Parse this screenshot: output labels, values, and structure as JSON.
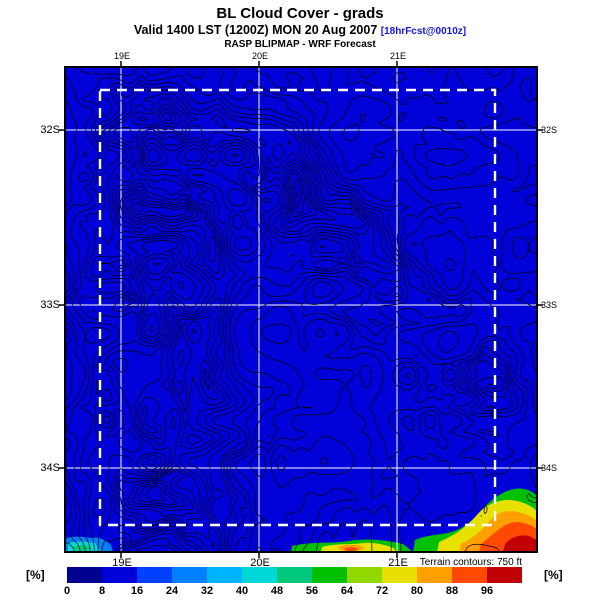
{
  "header": {
    "title": "BL Cloud Cover - grads",
    "valid_text": "Valid 1400 LST (1200Z) MON 20 Aug 2007 ",
    "fcst_tag": "[18hrFcst@0010z]",
    "model_text": "RASP BLIPMAP - WRF Forecast"
  },
  "map": {
    "x_ticks": [
      "19E",
      "20E",
      "21E"
    ],
    "y_ticks": [
      "32S",
      "33S",
      "34S"
    ],
    "colors": {
      "background": "#0000d8",
      "contours": "#000000",
      "grid": "#ffffff",
      "domain_box": "#ffffff",
      "frame": "#000000"
    }
  },
  "colorbar": {
    "unit": "[%]",
    "tick_labels": [
      "0",
      "8",
      "16",
      "24",
      "32",
      "40",
      "48",
      "56",
      "64",
      "72",
      "80",
      "88",
      "96"
    ],
    "colors": [
      "#000090",
      "#0000d8",
      "#0040ff",
      "#0080ff",
      "#00b4ff",
      "#00d8d8",
      "#00c87c",
      "#00c000",
      "#90d800",
      "#e8e000",
      "#ffa000",
      "#ff4800",
      "#c00000"
    ]
  },
  "footer": {
    "terrain_note": "Terrain contours: 750 ft"
  }
}
